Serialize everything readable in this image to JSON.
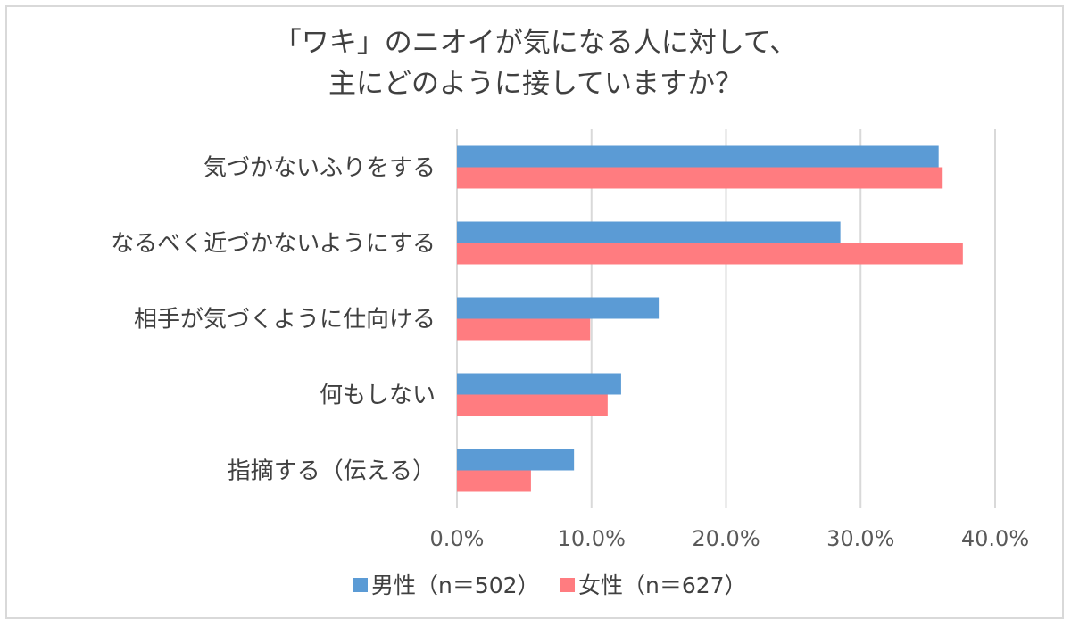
{
  "chart_data": {
    "type": "bar",
    "orientation": "horizontal",
    "title": [
      "「ワキ」のニオイが気になる人に対して、",
      "主にどのように接していますか？"
    ],
    "categories": [
      "気づかないふりをする",
      "なるべく近づかないようにする",
      "相手が気づくように仕向ける",
      "何もしない",
      "指摘する（伝える）"
    ],
    "series": [
      {
        "name": "男性（n＝502）",
        "color": "#5b9bd5",
        "values": [
          35.8,
          28.5,
          15.0,
          12.2,
          8.7
        ]
      },
      {
        "name": "女性（n＝627）",
        "color": "#ff7c80",
        "values": [
          36.1,
          37.6,
          9.9,
          11.2,
          5.5
        ]
      }
    ],
    "xlim": [
      0,
      40
    ],
    "xticks": [
      "0.0%",
      "10.0%",
      "20.0%",
      "30.0%",
      "40.0%"
    ],
    "grid": true,
    "legend": "bottom"
  }
}
